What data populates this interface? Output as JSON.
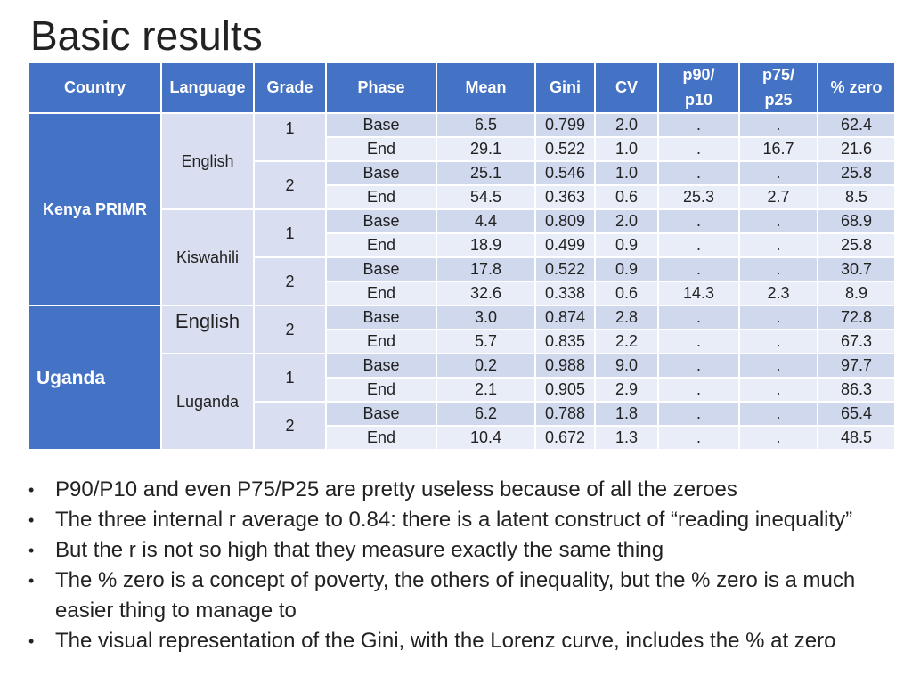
{
  "title": "Basic results",
  "table": {
    "headers": {
      "country": "Country",
      "language": "Language",
      "grade": "Grade",
      "phase": "Phase",
      "mean": "Mean",
      "gini": "Gini",
      "cv": "CV",
      "p90p10_line1": "p90/",
      "p90p10_line2": "p10",
      "p75p25_line1": "p75/",
      "p75p25_line2": "p25",
      "pct_zero": "% zero"
    },
    "countries": [
      "Kenya PRIMR",
      "Uganda"
    ],
    "languages": [
      "English",
      "Kiswahili",
      "English",
      "Luganda"
    ],
    "grades": [
      "1",
      "2",
      "1",
      "2",
      "2",
      "1",
      "2"
    ],
    "rows": [
      {
        "phase": "Base",
        "mean": "6.5",
        "gini": "0.799",
        "cv": "2.0",
        "p90p10": ".",
        "p75p25": ".",
        "zero": "62.4"
      },
      {
        "phase": "End",
        "mean": "29.1",
        "gini": "0.522",
        "cv": "1.0",
        "p90p10": ".",
        "p75p25": "16.7",
        "zero": "21.6"
      },
      {
        "phase": "Base",
        "mean": "25.1",
        "gini": "0.546",
        "cv": "1.0",
        "p90p10": ".",
        "p75p25": ".",
        "zero": "25.8"
      },
      {
        "phase": "End",
        "mean": "54.5",
        "gini": "0.363",
        "cv": "0.6",
        "p90p10": "25.3",
        "p75p25": "2.7",
        "zero": "8.5"
      },
      {
        "phase": "Base",
        "mean": "4.4",
        "gini": "0.809",
        "cv": "2.0",
        "p90p10": ".",
        "p75p25": ".",
        "zero": "68.9"
      },
      {
        "phase": "End",
        "mean": "18.9",
        "gini": "0.499",
        "cv": "0.9",
        "p90p10": ".",
        "p75p25": ".",
        "zero": "25.8"
      },
      {
        "phase": "Base",
        "mean": "17.8",
        "gini": "0.522",
        "cv": "0.9",
        "p90p10": ".",
        "p75p25": ".",
        "zero": "30.7"
      },
      {
        "phase": "End",
        "mean": "32.6",
        "gini": "0.338",
        "cv": "0.6",
        "p90p10": "14.3",
        "p75p25": "2.3",
        "zero": "8.9"
      },
      {
        "phase": "Base",
        "mean": "3.0",
        "gini": "0.874",
        "cv": "2.8",
        "p90p10": ".",
        "p75p25": ".",
        "zero": "72.8"
      },
      {
        "phase": "End",
        "mean": "5.7",
        "gini": "0.835",
        "cv": "2.2",
        "p90p10": ".",
        "p75p25": ".",
        "zero": "67.3"
      },
      {
        "phase": "Base",
        "mean": "0.2",
        "gini": "0.988",
        "cv": "9.0",
        "p90p10": ".",
        "p75p25": ".",
        "zero": "97.7"
      },
      {
        "phase": "End",
        "mean": "2.1",
        "gini": "0.905",
        "cv": "2.9",
        "p90p10": ".",
        "p75p25": ".",
        "zero": "86.3"
      },
      {
        "phase": "Base",
        "mean": "6.2",
        "gini": "0.788",
        "cv": "1.8",
        "p90p10": ".",
        "p75p25": ".",
        "zero": "65.4"
      },
      {
        "phase": "End",
        "mean": "10.4",
        "gini": "0.672",
        "cv": "1.3",
        "p90p10": ".",
        "p75p25": ".",
        "zero": "48.5"
      }
    ]
  },
  "bullets": [
    "P90/P10 and even P75/P25 are pretty useless because of all the zeroes",
    "The three internal r average to 0.84: there is a latent construct of “reading inequality”",
    "But the r is not so high that they measure exactly the same thing",
    "The % zero is a concept of poverty, the others of inequality, but the % zero is a much easier thing to manage to",
    "The visual representation of the Gini, with the Lorenz curve, includes the % at zero"
  ]
}
